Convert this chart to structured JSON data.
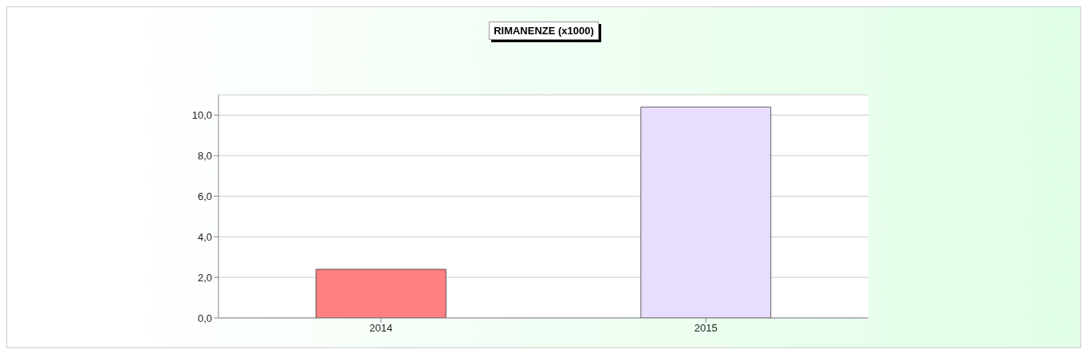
{
  "chart_data": {
    "type": "bar",
    "title": "RIMANENZE (x1000)",
    "categories": [
      "2014",
      "2015"
    ],
    "values": [
      2.4,
      10.4
    ],
    "colors": [
      "#ff8080",
      "#e8dcff"
    ],
    "ylim": [
      0,
      11
    ],
    "yticks": [
      {
        "value": 0,
        "label": "0,0"
      },
      {
        "value": 2,
        "label": "2,0"
      },
      {
        "value": 4,
        "label": "4,0"
      },
      {
        "value": 6,
        "label": "6,0"
      },
      {
        "value": 8,
        "label": "8,0"
      },
      {
        "value": 10,
        "label": "10,0"
      }
    ],
    "grid": "y"
  }
}
